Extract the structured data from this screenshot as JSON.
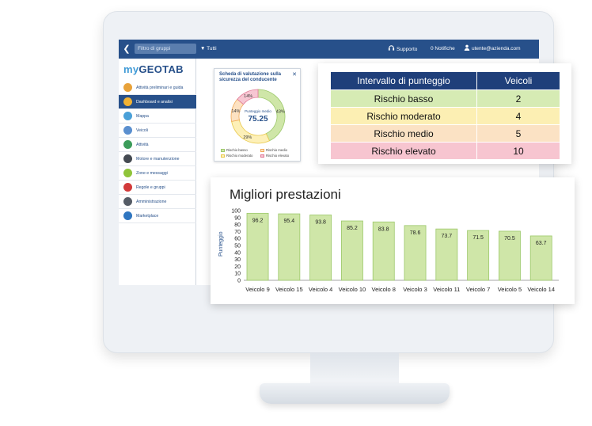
{
  "topbar": {
    "group_filter_placeholder": "Filtro di gruppi",
    "group_selection": "Tutti",
    "support_label": "Supporto",
    "notifications_label": "0 Notifiche",
    "user_email": "utente@azienda.com"
  },
  "sidebar": {
    "logo": {
      "prefix": "my",
      "brand": "GEOTAB"
    },
    "items": [
      {
        "label": "Attività preliminari e guida",
        "icon": "help-icon",
        "color": "#e8a23a",
        "active": false
      },
      {
        "label": "Dashboard e analisi",
        "icon": "pie-chart-icon",
        "color": "#f2b233",
        "active": true
      },
      {
        "label": "Mappa",
        "icon": "map-icon",
        "color": "#4aa0d8",
        "active": false
      },
      {
        "label": "Veicoli",
        "icon": "vehicle-icon",
        "color": "#5a8fcf",
        "active": false
      },
      {
        "label": "Attività",
        "icon": "activity-chart-icon",
        "color": "#3c9c5a",
        "active": false
      },
      {
        "label": "Motore e manutenzione",
        "icon": "engine-icon",
        "color": "#444a52",
        "active": false
      },
      {
        "label": "Zone e messaggi",
        "icon": "zone-icon",
        "color": "#8fc43a",
        "active": false
      },
      {
        "label": "Regole e gruppi",
        "icon": "no-entry-icon",
        "color": "#d23a3a",
        "active": false
      },
      {
        "label": "Amministrazione",
        "icon": "gear-icon",
        "color": "#555c66",
        "active": false
      },
      {
        "label": "Marketplace",
        "icon": "marketplace-icon",
        "color": "#2f76c0",
        "active": false
      }
    ]
  },
  "donut": {
    "title": "Scheda di valutazione sulla sicurezza del conducente",
    "center_label": "Punteggio medio",
    "center_value": "75.25",
    "segments": [
      {
        "label": "43%",
        "value": 43,
        "color": "#cfe6a8",
        "border": "#9cc86a"
      },
      {
        "label": "29%",
        "value": 29,
        "color": "#fdf0b8",
        "border": "#e9c94c"
      },
      {
        "label": "14%",
        "value": 14,
        "color": "#fde2c2",
        "border": "#f0a958"
      },
      {
        "label": "14%",
        "value": 14,
        "color": "#f7c6d2",
        "border": "#e07a96"
      }
    ],
    "legend": [
      {
        "label": "Rischio basso",
        "color": "#cfe6a8",
        "border": "#9cc86a"
      },
      {
        "label": "Rischio moderato",
        "color": "#fdf0b8",
        "border": "#e9c94c"
      },
      {
        "label": "Rischio medio",
        "color": "#fde2c2",
        "border": "#f0a958"
      },
      {
        "label": "Rischio elevato",
        "color": "#f7c6d2",
        "border": "#e07a96"
      }
    ]
  },
  "risk_table": {
    "headers": [
      "Intervallo di punteggio",
      "Veicoli"
    ],
    "rows": [
      {
        "label": "Rischio basso",
        "value": "2",
        "color": "#d6ebb4"
      },
      {
        "label": "Rischio moderato",
        "value": "4",
        "color": "#fcefb3"
      },
      {
        "label": "Rischio medio",
        "value": "5",
        "color": "#fbe2c4"
      },
      {
        "label": "Rischio elevato",
        "value": "10",
        "color": "#f7c5d0"
      }
    ]
  },
  "chart_data": {
    "type": "bar",
    "title": "Migliori prestazioni",
    "ylabel": "Punteggio",
    "xlabel": "",
    "ylim": [
      0,
      100
    ],
    "yticks": [
      0,
      10,
      20,
      30,
      40,
      50,
      60,
      70,
      80,
      90,
      100
    ],
    "categories": [
      "Veicolo 9",
      "Veicolo 15",
      "Veicolo 4",
      "Veicolo 10",
      "Veicolo 8",
      "Veicolo 3",
      "Veicolo 11",
      "Veicolo 7",
      "Veicolo 5",
      "Veicolo 14"
    ],
    "values": [
      96.2,
      95.4,
      93.8,
      85.2,
      83.8,
      78.6,
      73.7,
      71.5,
      70.5,
      63.7
    ],
    "bar_color": "#cfe6a8",
    "bar_border": "#9cc86a"
  }
}
